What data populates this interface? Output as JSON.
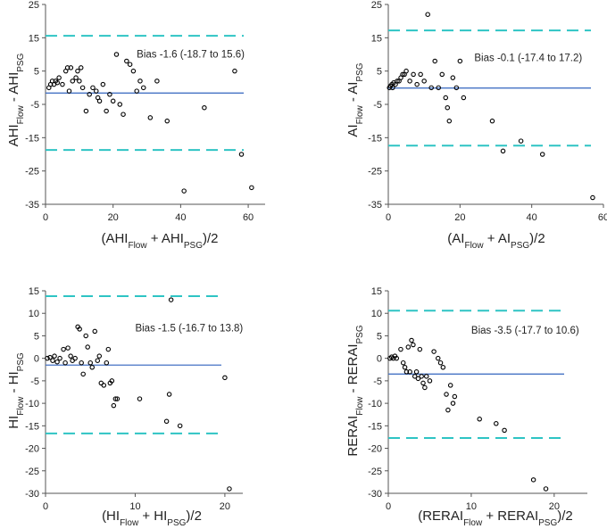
{
  "chart_data": [
    {
      "type": "scatter",
      "name": "ahi",
      "title": "",
      "xlabel": {
        "base": "(AHI",
        "sub1": "Flow",
        "mid": " + AHI",
        "sub2": "PSG",
        "end": ")/2"
      },
      "ylabel": {
        "base": "AHI",
        "sub1": "Flow",
        "mid": " - AHI",
        "sub2": "PSG"
      },
      "xlim": [
        0,
        65
      ],
      "ylim": [
        -35,
        25
      ],
      "xticks": [
        0,
        20,
        40,
        60
      ],
      "yticks": [
        -35,
        -25,
        -15,
        -5,
        5,
        15,
        25
      ],
      "xtick_labels": [
        "0",
        "20",
        "40",
        "60"
      ],
      "ytick_labels": [
        "-35",
        "-25",
        "-15",
        "-5",
        "5",
        "15",
        "25"
      ],
      "bias": -1.6,
      "upper_loa": 15.6,
      "lower_loa": -18.7,
      "annotation": "Bias -1.6 (-18.7 to 15.6)",
      "ann_at": [
        27,
        9
      ],
      "points": [
        [
          1,
          0
        ],
        [
          1.5,
          1
        ],
        [
          2,
          2
        ],
        [
          2.5,
          1
        ],
        [
          3,
          2
        ],
        [
          3.5,
          1.5
        ],
        [
          4,
          3
        ],
        [
          5,
          1
        ],
        [
          6,
          5
        ],
        [
          6.5,
          6
        ],
        [
          7,
          -1
        ],
        [
          7.5,
          6
        ],
        [
          8,
          2
        ],
        [
          9,
          3
        ],
        [
          9.5,
          5
        ],
        [
          10,
          2
        ],
        [
          10.5,
          6
        ],
        [
          11,
          0
        ],
        [
          12,
          -7
        ],
        [
          13,
          -2
        ],
        [
          14,
          0
        ],
        [
          15,
          -1
        ],
        [
          15.5,
          -3
        ],
        [
          16,
          -4
        ],
        [
          17,
          1
        ],
        [
          18,
          -7
        ],
        [
          19,
          -2
        ],
        [
          20,
          -4
        ],
        [
          21,
          10
        ],
        [
          22,
          -5
        ],
        [
          23,
          -8
        ],
        [
          24,
          8
        ],
        [
          25,
          7
        ],
        [
          26,
          5
        ],
        [
          27,
          -1
        ],
        [
          28,
          2
        ],
        [
          29,
          0
        ],
        [
          31,
          -9
        ],
        [
          33,
          2
        ],
        [
          36,
          -10
        ],
        [
          41,
          -31
        ],
        [
          47,
          -6
        ],
        [
          56,
          5
        ],
        [
          58,
          -20
        ],
        [
          61,
          -30
        ]
      ]
    },
    {
      "type": "scatter",
      "name": "ai",
      "title": "",
      "xlabel": {
        "base": "(AI",
        "sub1": "Flow",
        "mid": " + AI",
        "sub2": "PSG",
        "end": ")/2"
      },
      "ylabel": {
        "base": "AI",
        "sub1": "Flow",
        "mid": " - AI",
        "sub2": "PSG"
      },
      "xlim": [
        0,
        60
      ],
      "ylim": [
        -35,
        25
      ],
      "xticks": [
        0,
        20,
        40,
        60
      ],
      "yticks": [
        -35,
        -25,
        -15,
        -5,
        5,
        15,
        25
      ],
      "xtick_labels": [
        "0",
        "20",
        "40",
        "60"
      ],
      "ytick_labels": [
        "-35",
        "-25",
        "-15",
        "-5",
        "5",
        "15",
        "25"
      ],
      "bias": -0.1,
      "upper_loa": 17.2,
      "lower_loa": -17.4,
      "annotation": "Bias -0.1 (-17.4 to 17.2)",
      "ann_at": [
        24,
        8
      ],
      "points": [
        [
          0.3,
          0
        ],
        [
          0.6,
          0.5
        ],
        [
          1,
          1
        ],
        [
          1.2,
          0
        ],
        [
          1.5,
          1.5
        ],
        [
          2,
          1
        ],
        [
          2.5,
          2
        ],
        [
          3,
          2
        ],
        [
          3.5,
          3
        ],
        [
          4,
          4
        ],
        [
          4.5,
          4
        ],
        [
          5,
          5
        ],
        [
          6,
          2
        ],
        [
          7,
          4
        ],
        [
          8,
          1
        ],
        [
          9,
          4
        ],
        [
          10,
          2
        ],
        [
          11,
          22
        ],
        [
          12,
          0
        ],
        [
          13,
          8
        ],
        [
          14,
          0
        ],
        [
          15,
          4
        ],
        [
          16,
          -3
        ],
        [
          16.5,
          -6
        ],
        [
          17,
          -10
        ],
        [
          18,
          3
        ],
        [
          19,
          0
        ],
        [
          20,
          8
        ],
        [
          21,
          -3
        ],
        [
          29,
          -10
        ],
        [
          32,
          -19
        ],
        [
          37,
          -16
        ],
        [
          43,
          -20
        ],
        [
          57,
          -33
        ]
      ]
    },
    {
      "type": "scatter",
      "name": "hi",
      "title": "",
      "xlabel": {
        "base": "(HI",
        "sub1": "Flow",
        "mid": " + HI",
        "sub2": "PSG",
        "end": ")/2"
      },
      "ylabel": {
        "base": "HI",
        "sub1": "Flow",
        "mid": " - HI",
        "sub2": "PSG"
      },
      "xlim": [
        0,
        22
      ],
      "ylim": [
        -30,
        15
      ],
      "xticks": [
        0,
        10,
        20
      ],
      "yticks": [
        -30,
        -25,
        -20,
        -15,
        -10,
        -5,
        0,
        5,
        10,
        15
      ],
      "xtick_labels": [
        "0",
        "10",
        "20"
      ],
      "ytick_labels": [
        "-30",
        "-25",
        "-20",
        "-15",
        "-10",
        "-5",
        "0",
        "5",
        "10",
        "15"
      ],
      "bias": -1.5,
      "upper_loa": 13.8,
      "lower_loa": -16.7,
      "annotation": "Bias -1.5 (-16.7 to 13.8)",
      "ann_at": [
        10,
        6
      ],
      "points": [
        [
          0.2,
          0
        ],
        [
          0.5,
          0.2
        ],
        [
          0.8,
          -0.5
        ],
        [
          1,
          0.5
        ],
        [
          1.3,
          -0.8
        ],
        [
          1.6,
          0
        ],
        [
          2,
          2
        ],
        [
          2.2,
          -1
        ],
        [
          2.5,
          2.3
        ],
        [
          2.8,
          0.5
        ],
        [
          3,
          -0.5
        ],
        [
          3.3,
          0
        ],
        [
          3.6,
          7
        ],
        [
          3.8,
          6.5
        ],
        [
          4,
          -1
        ],
        [
          4.2,
          -3.5
        ],
        [
          4.5,
          5
        ],
        [
          4.7,
          2.5
        ],
        [
          5,
          -1
        ],
        [
          5.2,
          -2
        ],
        [
          5.5,
          6
        ],
        [
          5.8,
          -0.5
        ],
        [
          6,
          0.5
        ],
        [
          6.2,
          -5.5
        ],
        [
          6.5,
          -6
        ],
        [
          6.8,
          -1
        ],
        [
          7,
          2
        ],
        [
          7.2,
          -5.5
        ],
        [
          7.4,
          -5
        ],
        [
          7.6,
          -10.5
        ],
        [
          7.8,
          -9
        ],
        [
          8,
          -9
        ],
        [
          10.5,
          -9
        ],
        [
          13.5,
          -14
        ],
        [
          13.8,
          -8
        ],
        [
          14,
          13
        ],
        [
          15,
          -15
        ],
        [
          20,
          -4.3
        ],
        [
          20.5,
          -29
        ]
      ]
    },
    {
      "type": "scatter",
      "name": "rerai",
      "title": "",
      "xlabel": {
        "base": "(RERAI",
        "sub1": "Flow",
        "mid": " + RERAI",
        "sub2": "PSG",
        "end": ")/2"
      },
      "ylabel": {
        "base": "RERAI",
        "sub1": "Flow",
        "mid": " - RERAI",
        "sub2": "PSG"
      },
      "xlim": [
        0,
        24
      ],
      "ylim": [
        -30,
        15
      ],
      "xticks": [
        0,
        10,
        20
      ],
      "yticks": [
        -30,
        -25,
        -20,
        -15,
        -10,
        -5,
        0,
        5,
        10,
        15
      ],
      "xtick_labels": [
        "0",
        "10",
        "20"
      ],
      "ytick_labels": [
        "-30",
        "-25",
        "-20",
        "-15",
        "-10",
        "-5",
        "0",
        "5",
        "10",
        "15"
      ],
      "bias": -3.5,
      "upper_loa": 10.6,
      "lower_loa": -17.7,
      "annotation": "Bias -3.5 (-17.7 to 10.6)",
      "ann_at": [
        10,
        5.5
      ],
      "points": [
        [
          0.2,
          0
        ],
        [
          0.4,
          0.3
        ],
        [
          0.6,
          0
        ],
        [
          0.8,
          0.5
        ],
        [
          1,
          0
        ],
        [
          1.5,
          2
        ],
        [
          1.8,
          -1
        ],
        [
          2,
          -2
        ],
        [
          2.2,
          -3
        ],
        [
          2.4,
          2.5
        ],
        [
          2.6,
          -3
        ],
        [
          2.8,
          4
        ],
        [
          3,
          3
        ],
        [
          3.2,
          -4
        ],
        [
          3.4,
          -3
        ],
        [
          3.6,
          -4.5
        ],
        [
          3.8,
          2
        ],
        [
          4,
          -4
        ],
        [
          4.2,
          -5.5
        ],
        [
          4.4,
          -6.5
        ],
        [
          4.6,
          -4
        ],
        [
          5,
          -5
        ],
        [
          5.5,
          1.5
        ],
        [
          6,
          0
        ],
        [
          6.3,
          -1
        ],
        [
          6.6,
          -2
        ],
        [
          7,
          -8
        ],
        [
          7.2,
          -11.5
        ],
        [
          7.5,
          -6
        ],
        [
          7.8,
          -10
        ],
        [
          8,
          -8.5
        ],
        [
          11,
          -13.5
        ],
        [
          13,
          -14.5
        ],
        [
          14,
          -16
        ],
        [
          17.5,
          -27
        ],
        [
          19,
          -29
        ]
      ]
    }
  ],
  "colors": {
    "bias_line": "#4472c4",
    "loa_line": "#2ec4c4",
    "points": "#000000",
    "axis": "#555555",
    "text": "#222222"
  }
}
